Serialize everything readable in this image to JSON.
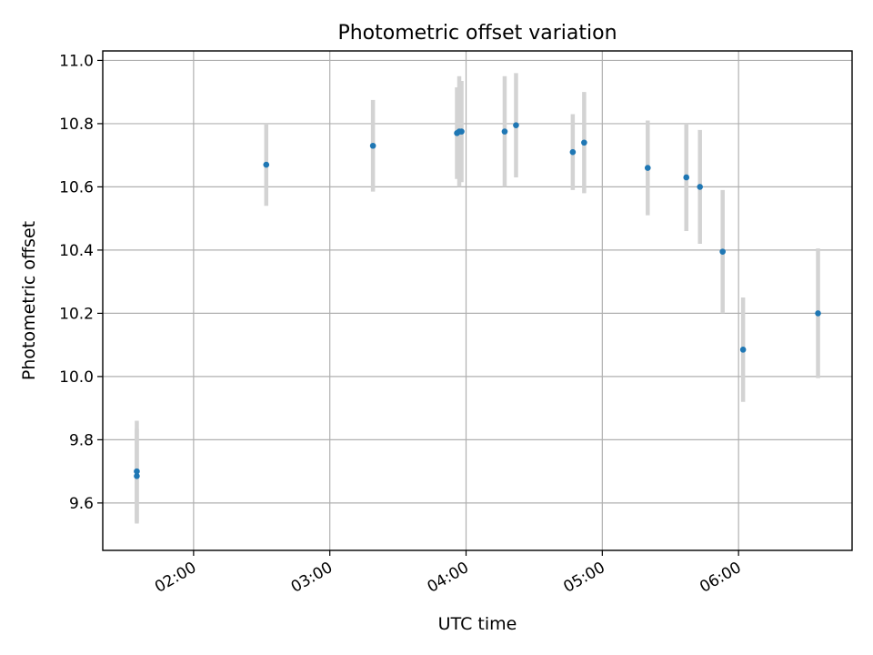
{
  "chart_data": {
    "type": "scatter",
    "title": "Photometric offset variation",
    "xlabel": "UTC time",
    "ylabel": "Photometric offset",
    "x_unit": "UTC time (HH:MM)",
    "xlim": [
      "01:20",
      "06:50"
    ],
    "ylim": [
      9.45,
      11.03
    ],
    "x_ticks": [
      "02:00",
      "03:00",
      "04:00",
      "05:00",
      "06:00"
    ],
    "y_ticks": [
      9.6,
      9.8,
      10.0,
      10.2,
      10.4,
      10.6,
      10.8,
      11.0
    ],
    "x_tick_labels": [
      "02:00",
      "03:00",
      "04:00",
      "05:00",
      "06:00"
    ],
    "y_tick_labels": [
      "9.6",
      "9.8",
      "10.0",
      "10.2",
      "10.4",
      "10.6",
      "10.8",
      "11.0"
    ],
    "grid": true,
    "legend": null,
    "colors": {
      "marker": "#1f77b4",
      "error_bar": "#d3d3d3",
      "grid": "#b0b0b0"
    },
    "points": [
      {
        "x": "01:35",
        "y": 9.685,
        "yerr": 0.15
      },
      {
        "x": "01:35",
        "y": 9.7,
        "yerr": 0.16
      },
      {
        "x": "02:32",
        "y": 10.67,
        "yerr": 0.13
      },
      {
        "x": "03:19",
        "y": 10.73,
        "yerr": 0.145
      },
      {
        "x": "03:56",
        "y": 10.77,
        "yerr": 0.145
      },
      {
        "x": "03:57",
        "y": 10.775,
        "yerr": 0.175
      },
      {
        "x": "03:58",
        "y": 10.775,
        "yerr": 0.16
      },
      {
        "x": "04:17",
        "y": 10.775,
        "yerr": 0.175
      },
      {
        "x": "04:22",
        "y": 10.795,
        "yerr": 0.165
      },
      {
        "x": "04:47",
        "y": 10.71,
        "yerr": 0.12
      },
      {
        "x": "04:52",
        "y": 10.74,
        "yerr": 0.16
      },
      {
        "x": "05:20",
        "y": 10.66,
        "yerr": 0.15
      },
      {
        "x": "05:37",
        "y": 10.63,
        "yerr": 0.17
      },
      {
        "x": "05:43",
        "y": 10.6,
        "yerr": 0.18
      },
      {
        "x": "05:53",
        "y": 10.395,
        "yerr": 0.195
      },
      {
        "x": "06:02",
        "y": 10.085,
        "yerr": 0.165
      },
      {
        "x": "06:35",
        "y": 10.2,
        "yerr": 0.205
      }
    ]
  }
}
